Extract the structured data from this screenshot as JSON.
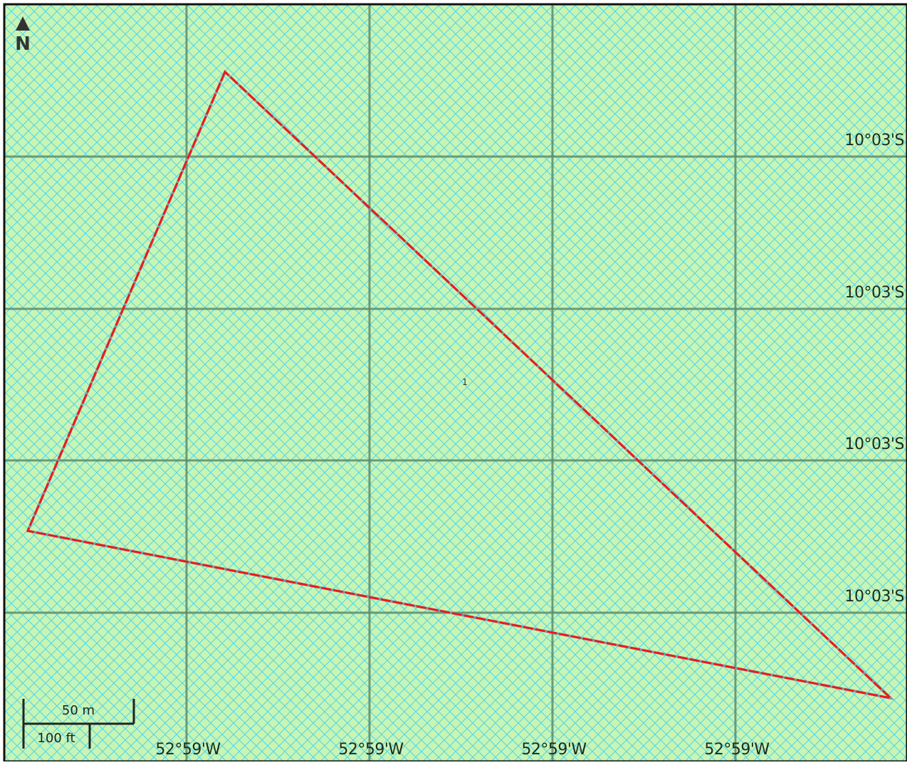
{
  "map": {
    "background_color": "#c8f5b4",
    "hatch_color": "#54d6e8",
    "grid_color": "#5e8a6e",
    "boundary_color": "#ee1a1a",
    "north_arrow": {
      "icon": "north-arrow-icon",
      "label": "N"
    },
    "latitude_labels": [
      "10°03'S",
      "10°03'S",
      "10°03'S",
      "10°03'S"
    ],
    "longitude_labels": [
      "52°59'W",
      "52°59'W",
      "52°59'W",
      "52°59'W"
    ],
    "parcel": {
      "label": "1"
    },
    "scale_bar": {
      "metric_label": "50 m",
      "imperial_label": "100 ft"
    }
  }
}
